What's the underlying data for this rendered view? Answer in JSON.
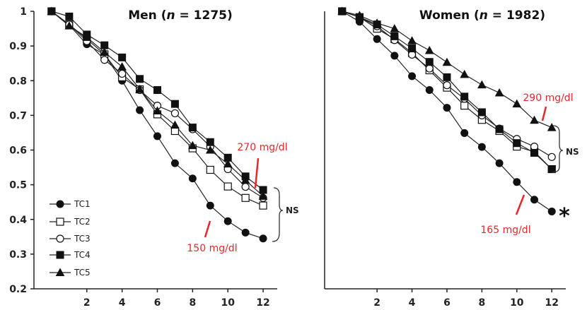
{
  "chart_data": [
    {
      "type": "line",
      "title_prefix": "Men (",
      "title_n": "n",
      "title_suffix": " = 1275)",
      "x": [
        0,
        1,
        2,
        3,
        4,
        5,
        6,
        7,
        8,
        9,
        10,
        11,
        12
      ],
      "xticks": [
        2,
        4,
        6,
        8,
        10,
        12
      ],
      "xtick_labels": [
        "2",
        "4",
        "6",
        "8",
        "10",
        "12"
      ],
      "xlim": [
        -1,
        12.8
      ],
      "ylim": [
        0.2,
        1.0
      ],
      "yticks": [
        0.2,
        0.3,
        0.4,
        0.5,
        0.6,
        0.7,
        0.8,
        0.9,
        1.0
      ],
      "ytick_labels": [
        "0.2",
        "0.3",
        "0.4",
        "0.5",
        "0.6",
        "0.7",
        "0.8",
        "0.9",
        "1"
      ],
      "series": [
        {
          "name": "TC1",
          "marker": "circle-filled",
          "values": [
            1.0,
            0.96,
            0.905,
            0.875,
            0.8,
            0.715,
            0.64,
            0.562,
            0.518,
            0.44,
            0.395,
            0.362,
            0.345
          ]
        },
        {
          "name": "TC2",
          "marker": "square-open",
          "values": [
            1.0,
            0.962,
            0.92,
            0.876,
            0.81,
            0.775,
            0.703,
            0.655,
            0.605,
            0.543,
            0.495,
            0.462,
            0.44
          ]
        },
        {
          "name": "TC3",
          "marker": "circle-open",
          "values": [
            1.0,
            0.962,
            0.914,
            0.86,
            0.82,
            0.773,
            0.728,
            0.706,
            0.66,
            0.61,
            0.545,
            0.494,
            0.462
          ]
        },
        {
          "name": "TC4",
          "marker": "square-filled",
          "values": [
            1.0,
            0.985,
            0.933,
            0.902,
            0.867,
            0.805,
            0.773,
            0.733,
            0.665,
            0.623,
            0.578,
            0.524,
            0.485
          ]
        },
        {
          "name": "TC5",
          "marker": "triangle-filled",
          "values": [
            1.0,
            0.958,
            0.925,
            0.882,
            0.84,
            0.775,
            0.713,
            0.672,
            0.613,
            0.6,
            0.56,
            0.513,
            0.467
          ]
        }
      ],
      "annotations": [
        {
          "text": "270 mg/dl",
          "series": "TC4",
          "x": 12
        },
        {
          "text": "150 mg/dl",
          "series": "TC1",
          "x": 9
        },
        {
          "text": "NS",
          "bracket_from": 0.345,
          "bracket_to": 0.487
        }
      ],
      "legend": {
        "position": "bottom-left",
        "entries": [
          "TC1",
          "TC2",
          "TC3",
          "TC4",
          "TC5"
        ]
      }
    },
    {
      "type": "line",
      "title_prefix": "Women (",
      "title_n": "n",
      "title_suffix": " = 1982)",
      "x": [
        0,
        1,
        2,
        3,
        4,
        5,
        6,
        7,
        8,
        9,
        10,
        11,
        12
      ],
      "xticks": [
        2,
        4,
        6,
        8,
        10,
        12
      ],
      "xtick_labels": [
        "2",
        "4",
        "6",
        "8",
        "10",
        "12"
      ],
      "xlim": [
        -1,
        12.8
      ],
      "ylim": [
        0.2,
        1.0
      ],
      "series": [
        {
          "name": "TC1",
          "marker": "circle-filled",
          "values": [
            1.0,
            0.97,
            0.92,
            0.872,
            0.813,
            0.773,
            0.722,
            0.649,
            0.609,
            0.562,
            0.508,
            0.457,
            0.423
          ]
        },
        {
          "name": "TC2",
          "marker": "square-open",
          "values": [
            1.0,
            0.983,
            0.95,
            0.92,
            0.88,
            0.83,
            0.78,
            0.728,
            0.687,
            0.655,
            0.61,
            0.595,
            0.545
          ]
        },
        {
          "name": "TC3",
          "marker": "circle-open",
          "values": [
            1.0,
            0.983,
            0.957,
            0.917,
            0.875,
            0.835,
            0.787,
            0.748,
            0.7,
            0.662,
            0.632,
            0.61,
            0.58
          ]
        },
        {
          "name": "TC4",
          "marker": "square-filled",
          "values": [
            1.0,
            0.983,
            0.962,
            0.928,
            0.893,
            0.854,
            0.81,
            0.754,
            0.709,
            0.66,
            0.62,
            0.592,
            0.545
          ]
        },
        {
          "name": "TC5",
          "marker": "triangle-filled",
          "values": [
            1.0,
            0.988,
            0.966,
            0.95,
            0.915,
            0.887,
            0.853,
            0.818,
            0.788,
            0.765,
            0.733,
            0.686,
            0.665
          ]
        }
      ],
      "annotations": [
        {
          "text": "290 mg/dl",
          "series": "TC5",
          "x": 11.7
        },
        {
          "text": "165 mg/dl",
          "series": "TC1",
          "x": 10.5
        },
        {
          "text": "NS",
          "bracket_from": 0.545,
          "bracket_to": 0.665
        },
        {
          "text": "*",
          "series": "TC1",
          "x": 12
        }
      ]
    }
  ]
}
